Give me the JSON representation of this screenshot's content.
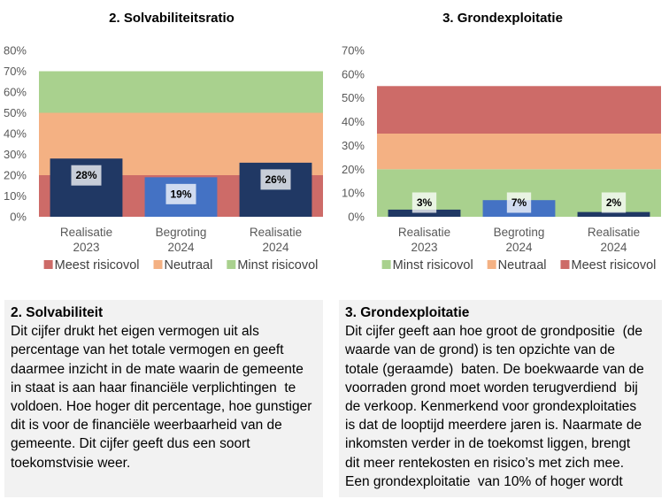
{
  "chart_data": [
    {
      "type": "bar",
      "title": "2. Solvabiliteitsratio",
      "categories": [
        [
          "Realisatie",
          "2023"
        ],
        [
          "Begroting",
          "2024"
        ],
        [
          "Realisatie",
          "2024"
        ]
      ],
      "values": [
        28,
        19,
        26
      ],
      "data_labels": [
        "28%",
        "19%",
        "26%"
      ],
      "bar_colors": [
        "#203864",
        "#4472c4",
        "#203864"
      ],
      "ylim": [
        0,
        80
      ],
      "yticks": [
        0,
        10,
        20,
        30,
        40,
        50,
        60,
        70,
        80
      ],
      "ytick_labels": [
        "0%",
        "10%",
        "20%",
        "30%",
        "40%",
        "50%",
        "60%",
        "70%",
        "80%"
      ],
      "bands": [
        {
          "name": "Meest risicovol",
          "from": 0,
          "to": 20,
          "color": "#cd6b68"
        },
        {
          "name": "Neutraal",
          "from": 20,
          "to": 50,
          "color": "#f4b183"
        },
        {
          "name": "Minst risicovol",
          "from": 50,
          "to": 70,
          "color": "#a9d18e"
        }
      ],
      "legend_placement": "bottom",
      "grid": false
    },
    {
      "type": "bar",
      "title": "3. Grondexploitatie",
      "categories": [
        [
          "Realisatie",
          "2023"
        ],
        [
          "Begroting",
          "2024"
        ],
        [
          "Realisatie",
          "2024"
        ]
      ],
      "values": [
        3,
        7,
        2
      ],
      "data_labels": [
        "3%",
        "7%",
        "2%"
      ],
      "bar_colors": [
        "#203864",
        "#4472c4",
        "#203864"
      ],
      "ylim": [
        0,
        70
      ],
      "yticks": [
        0,
        10,
        20,
        30,
        40,
        50,
        60,
        70
      ],
      "ytick_labels": [
        "0%",
        "10%",
        "20%",
        "30%",
        "40%",
        "50%",
        "60%",
        "70%"
      ],
      "bands": [
        {
          "name": "Minst risicovol",
          "from": 0,
          "to": 20,
          "color": "#a9d18e"
        },
        {
          "name": "Neutraal",
          "from": 20,
          "to": 35,
          "color": "#f4b183"
        },
        {
          "name": "Meest risicovol",
          "from": 35,
          "to": 55,
          "color": "#cd6b68"
        }
      ],
      "legend_placement": "bottom",
      "grid": false
    }
  ],
  "text_boxes": [
    {
      "title": "2. Solvabiliteit",
      "lines": [
        "Dit cijfer drukt het eigen vermogen uit als",
        "percentage van het totale vermogen en geeft",
        "daarmee inzicht in de mate waarin de gemeente",
        "in staat is aan haar financiële verplichtingen  te",
        "voldoen. Hoe hoger dit percentage, hoe gunstiger",
        "dit is voor de financiële weerbaarheid van de",
        "gemeente. Dit cijfer geeft dus een soort",
        "toekomstvisie weer."
      ]
    },
    {
      "title": "3. Grondexploitatie",
      "lines": [
        "Dit cijfer geeft aan hoe groot de grondpositie  (de",
        "waarde van de grond) is ten opzichte van de",
        "totale (geraamde)  baten. De boekwaarde van de",
        "voorraden grond moet worden terugverdiend  bij",
        "de verkoop. Kenmerkend voor grondexploitaties",
        "is dat de looptijd meerdere jaren is. Naarmate de",
        "inkomsten verder in de toekomst liggen, brengt",
        "dit meer rentekosten en risico’s met zich mee.",
        "Een grondexploitatie  van 10% of hoger wordt"
      ]
    }
  ]
}
